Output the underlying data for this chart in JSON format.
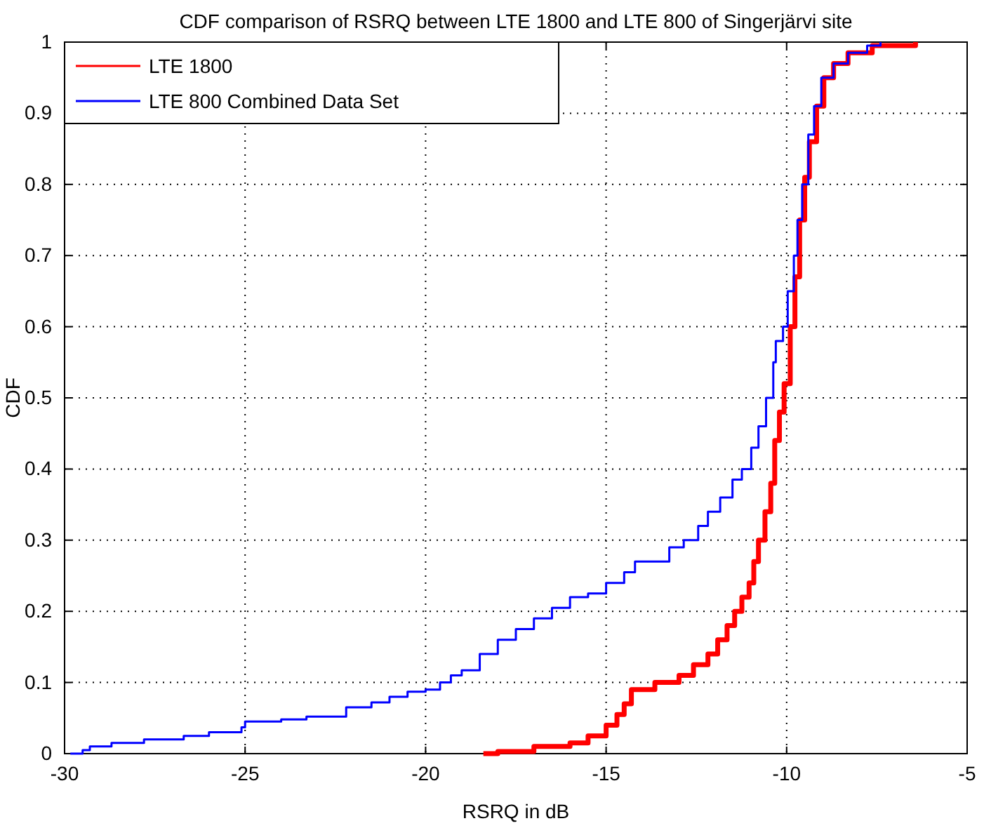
{
  "chart_data": {
    "type": "step",
    "title": "CDF comparison of RSRQ between LTE 1800 and LTE 800 of Singerjärvi site",
    "xlabel": "RSRQ in dB",
    "ylabel": "CDF",
    "xlim": [
      -30,
      -5
    ],
    "xticks": [
      -30,
      -25,
      -20,
      -15,
      -10,
      -5
    ],
    "ylim": [
      0,
      1
    ],
    "yticks": [
      0,
      0.1,
      0.2,
      0.3,
      0.4,
      0.5,
      0.6,
      0.7,
      0.8,
      0.9,
      1
    ],
    "grid": true,
    "legend": "top left",
    "series": [
      {
        "name": "LTE 1800",
        "color": "#ff0000",
        "x": [
          -18.4,
          -18,
          -17,
          -16,
          -15.5,
          -15,
          -14.7,
          -14.5,
          -14.3,
          -13.65,
          -12.98,
          -12.58,
          -12.18,
          -11.91,
          -11.65,
          -11.44,
          -11.24,
          -11.04,
          -10.91,
          -10.78,
          -10.6,
          -10.44,
          -10.33,
          -10.2,
          -10.07,
          -9.9,
          -9.77,
          -9.64,
          -9.5,
          -9.37,
          -9.17,
          -8.97,
          -8.7,
          -8.3,
          -7.63,
          -6.43
        ],
        "values": [
          0,
          0.003,
          0.01,
          0.015,
          0.025,
          0.04,
          0.055,
          0.07,
          0.09,
          0.1,
          0.11,
          0.125,
          0.14,
          0.16,
          0.18,
          0.2,
          0.22,
          0.24,
          0.27,
          0.3,
          0.34,
          0.38,
          0.44,
          0.48,
          0.52,
          0.6,
          0.67,
          0.75,
          0.81,
          0.86,
          0.91,
          0.95,
          0.97,
          0.985,
          0.995,
          1
        ]
      },
      {
        "name": "LTE 800 Combined Data Set",
        "color": "#0000ff",
        "x": [
          -29.84,
          -29.5,
          -29.3,
          -28.7,
          -27.8,
          -26.7,
          -26,
          -25.1,
          -25,
          -24,
          -23.3,
          -22.2,
          -21.5,
          -21,
          -20.5,
          -20,
          -19.6,
          -19.3,
          -19,
          -18.5,
          -18,
          -17.5,
          -17,
          -16.5,
          -16,
          -15.5,
          -15,
          -14.5,
          -14.2,
          -13.65,
          -13.25,
          -12.85,
          -12.45,
          -12.18,
          -11.84,
          -11.5,
          -11.24,
          -10.98,
          -10.78,
          -10.57,
          -10.37,
          -10.3,
          -10.1,
          -9.97,
          -9.8,
          -9.7,
          -9.57,
          -9.4,
          -9.24,
          -9.04,
          -8.7,
          -8.3,
          -7.77,
          -7.4
        ],
        "values": [
          0,
          0.005,
          0.01,
          0.015,
          0.02,
          0.025,
          0.03,
          0.037,
          0.045,
          0.048,
          0.052,
          0.065,
          0.072,
          0.08,
          0.087,
          0.09,
          0.1,
          0.11,
          0.117,
          0.14,
          0.16,
          0.175,
          0.19,
          0.205,
          0.22,
          0.225,
          0.24,
          0.255,
          0.27,
          0.27,
          0.29,
          0.3,
          0.32,
          0.34,
          0.36,
          0.385,
          0.4,
          0.43,
          0.46,
          0.5,
          0.55,
          0.58,
          0.6,
          0.65,
          0.7,
          0.75,
          0.8,
          0.87,
          0.91,
          0.95,
          0.97,
          0.985,
          0.995,
          1
        ]
      }
    ]
  }
}
